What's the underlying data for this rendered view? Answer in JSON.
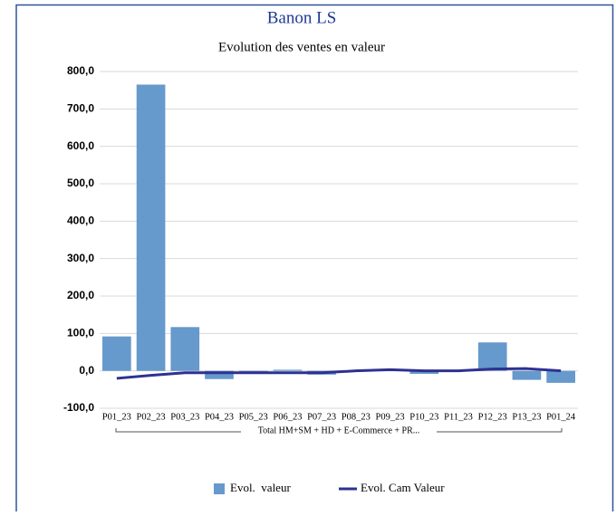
{
  "chart_data": {
    "type": "bar_line",
    "title": "Banon LS",
    "subtitle": "Evolution des ventes en valeur",
    "categories": [
      "P01_23",
      "P02_23",
      "P03_23",
      "P04_23",
      "P05_23",
      "P06_23",
      "P07_23",
      "P08_23",
      "P09_23",
      "P10_23",
      "P11_23",
      "P12_23",
      "P13_23",
      "P01_24"
    ],
    "group_label": "Total HM+SM + HD + E-Commerce + PR...",
    "series": [
      {
        "name": "Evol.  valeur",
        "type": "bar",
        "color": "#6699cc",
        "values": [
          92,
          765,
          117,
          -22,
          -3,
          3,
          -10,
          0,
          2,
          -8,
          0,
          76,
          -24,
          -32
        ]
      },
      {
        "name": "Evol. Cam Valeur",
        "type": "line",
        "color": "#2e3192",
        "values": [
          -20,
          -12,
          -5,
          -5,
          -5,
          -5,
          -5,
          0,
          3,
          0,
          0,
          5,
          6,
          0
        ]
      }
    ],
    "ylim": [
      -100,
      800
    ],
    "yticks": [
      {
        "value": -100,
        "label": "-100,0"
      },
      {
        "value": 0,
        "label": "0,0"
      },
      {
        "value": 100,
        "label": "100,0"
      },
      {
        "value": 200,
        "label": "200,0"
      },
      {
        "value": 300,
        "label": "300,0"
      },
      {
        "value": 400,
        "label": "400,0"
      },
      {
        "value": 500,
        "label": "500,0"
      },
      {
        "value": 600,
        "label": "600,0"
      },
      {
        "value": 700,
        "label": "700,0"
      },
      {
        "value": 800,
        "label": "800,0"
      }
    ],
    "grid": true,
    "legend": "bottom"
  }
}
